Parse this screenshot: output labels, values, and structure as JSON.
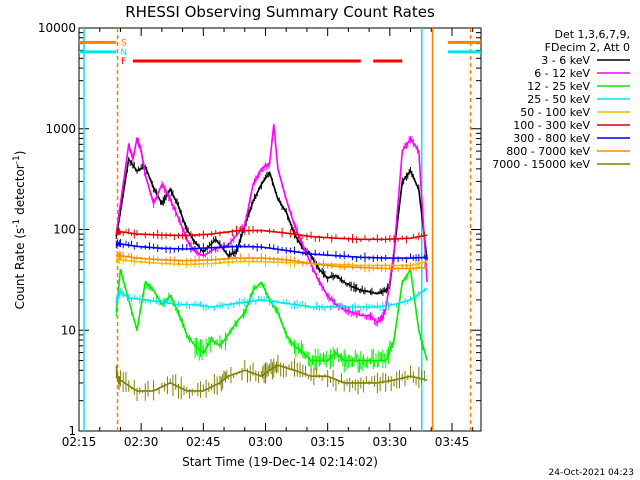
{
  "chart_data": {
    "type": "line",
    "title": "RHESSI Observing Summary Count Rates",
    "xlabel": "Start Time (19-Dec-14 02:14:02)",
    "ylabel": "Count Rate (s⁻¹ detector⁻¹)",
    "y_scale": "log",
    "ylim": [
      1,
      10000
    ],
    "y_ticks": [
      1,
      10,
      100,
      1000,
      10000
    ],
    "y_tick_labels": [
      "1",
      "10",
      "100",
      "1000",
      "10000"
    ],
    "xlim_minutes": [
      0,
      97
    ],
    "x_ticks_minutes": [
      0,
      15,
      30,
      45,
      60,
      75,
      90
    ],
    "x_tick_labels": [
      "02:15",
      "02:30",
      "02:45",
      "03:00",
      "03:15",
      "03:30",
      "03:45"
    ],
    "legend": {
      "placement": "right, outside plot",
      "header": [
        "Det 1,3,6,7,9,",
        "FDecim 2, Att 0"
      ],
      "entries": [
        {
          "label": "3 - 6 keV",
          "color": "#000000"
        },
        {
          "label": "6 - 12 keV",
          "color": "#ff00ff"
        },
        {
          "label": "12 - 25 keV",
          "color": "#00ee00"
        },
        {
          "label": "25 - 50 keV",
          "color": "#00e5ee"
        },
        {
          "label": "50 - 100 keV",
          "color": "#e6c200"
        },
        {
          "label": "100 - 300 keV",
          "color": "#e00000"
        },
        {
          "label": "300 - 800 keV",
          "color": "#0000ee"
        },
        {
          "label": "800 - 7000 keV",
          "color": "#ff8c00"
        },
        {
          "label": "7000 - 15000 keV",
          "color": "#808000"
        }
      ]
    },
    "flags": [
      {
        "label": "S",
        "color": "#ff8000",
        "segments": [
          [
            -2,
            9
          ],
          [
            89,
            97
          ]
        ]
      },
      {
        "label": "N",
        "color": "#00e5ee",
        "segments": [
          [
            -2,
            9
          ],
          [
            89,
            97
          ]
        ]
      },
      {
        "label": "F",
        "color": "#ff0000",
        "segments": [
          [
            13,
            68
          ],
          [
            71,
            78
          ]
        ]
      }
    ],
    "vertical_markers": [
      {
        "x": 1.2,
        "color": "#00e5ee",
        "style": "solid"
      },
      {
        "x": 9.3,
        "color": "#ff8000",
        "style": "dashed"
      },
      {
        "x": 82.7,
        "color": "#00e5ee",
        "style": "solid"
      },
      {
        "x": 85.3,
        "color": "#ff8000",
        "style": "solid"
      },
      {
        "x": 94.5,
        "color": "#ff8000",
        "style": "dashed"
      }
    ],
    "series": [
      {
        "label": "3 - 6 keV",
        "color": "#000000",
        "x": [
          9,
          10,
          12,
          14,
          16,
          18,
          20,
          22,
          24,
          26,
          28,
          30,
          33,
          36,
          38,
          40,
          42,
          44,
          46,
          48,
          50,
          52,
          54,
          56,
          58,
          60,
          62,
          64,
          66,
          68,
          70,
          72,
          74,
          75,
          76,
          78,
          80,
          82,
          84
        ],
        "y": [
          85,
          150,
          500,
          380,
          420,
          260,
          180,
          250,
          170,
          100,
          75,
          60,
          80,
          55,
          60,
          110,
          190,
          280,
          370,
          200,
          150,
          90,
          65,
          55,
          40,
          33,
          35,
          30,
          27,
          25,
          24,
          23,
          25,
          28,
          60,
          300,
          380,
          250,
          50
        ]
      },
      {
        "label": "6 - 12 keV",
        "color": "#ff00ff",
        "x": [
          9,
          10,
          12,
          13,
          14,
          15,
          16,
          17,
          18,
          20,
          22,
          24,
          26,
          28,
          30,
          33,
          36,
          40,
          42,
          44,
          46,
          47,
          48,
          50,
          52,
          54,
          56,
          58,
          60,
          62,
          64,
          66,
          68,
          70,
          72,
          73,
          74,
          76,
          78,
          80,
          82,
          84
        ],
        "y": [
          90,
          180,
          700,
          500,
          800,
          600,
          350,
          250,
          180,
          280,
          200,
          130,
          80,
          60,
          55,
          65,
          70,
          110,
          280,
          400,
          450,
          1100,
          400,
          200,
          110,
          70,
          45,
          30,
          22,
          18,
          16,
          15,
          14,
          14,
          12,
          13,
          16,
          60,
          600,
          800,
          600,
          30
        ]
      },
      {
        "label": "12 - 25 keV",
        "color": "#00ee00",
        "x": [
          9,
          10,
          12,
          14,
          16,
          18,
          20,
          22,
          24,
          26,
          28,
          30,
          32,
          34,
          36,
          38,
          40,
          42,
          44,
          46,
          48,
          50,
          52,
          54,
          56,
          58,
          60,
          62,
          64,
          66,
          68,
          70,
          72,
          74,
          76,
          78,
          80,
          82,
          84
        ],
        "y": [
          15,
          40,
          20,
          10,
          30,
          25,
          18,
          22,
          15,
          9,
          7,
          6,
          8,
          7,
          9,
          12,
          15,
          25,
          30,
          20,
          15,
          9,
          7,
          6,
          5,
          5,
          5,
          6,
          5,
          5,
          5,
          5,
          5,
          5,
          8,
          30,
          40,
          10,
          5
        ]
      },
      {
        "label": "25 - 50 keV",
        "color": "#00e5ee",
        "x": [
          9,
          10,
          12,
          16,
          20,
          24,
          28,
          32,
          36,
          40,
          44,
          48,
          52,
          56,
          60,
          64,
          68,
          72,
          76,
          80,
          84
        ],
        "y": [
          20,
          24,
          21,
          20,
          19,
          18,
          18,
          17,
          18,
          19,
          20,
          19,
          18,
          17,
          17,
          17,
          17,
          17,
          18,
          20,
          26
        ]
      },
      {
        "label": "50 - 100 keV",
        "color": "#e6c200",
        "x": [
          9,
          10,
          14,
          20,
          26,
          32,
          38,
          44,
          50,
          56,
          62,
          68,
          74,
          80,
          84
        ],
        "y": [
          50,
          50,
          48,
          46,
          45,
          46,
          48,
          48,
          47,
          46,
          45,
          44,
          44,
          44,
          48
        ]
      },
      {
        "label": "100 - 300 keV",
        "color": "#e00000",
        "x": [
          9,
          10,
          14,
          20,
          26,
          32,
          38,
          44,
          50,
          56,
          62,
          68,
          74,
          80,
          84
        ],
        "y": [
          95,
          95,
          90,
          88,
          87,
          90,
          97,
          98,
          92,
          85,
          82,
          80,
          80,
          82,
          88
        ]
      },
      {
        "label": "300 - 800 keV",
        "color": "#0000ee",
        "x": [
          9,
          10,
          14,
          20,
          26,
          32,
          38,
          44,
          50,
          56,
          62,
          68,
          74,
          80,
          84
        ],
        "y": [
          70,
          72,
          68,
          65,
          64,
          66,
          68,
          67,
          62,
          57,
          55,
          53,
          52,
          52,
          53
        ]
      },
      {
        "label": "800 - 7000 keV",
        "color": "#ff8c00",
        "x": [
          9,
          10,
          14,
          20,
          26,
          32,
          38,
          44,
          50,
          56,
          62,
          68,
          74,
          80,
          84
        ],
        "y": [
          55,
          55,
          52,
          50,
          49,
          50,
          52,
          52,
          50,
          46,
          43,
          42,
          41,
          41,
          42
        ]
      },
      {
        "label": "7000 - 15000 keV",
        "color": "#808000",
        "x": [
          9,
          10,
          14,
          18,
          22,
          26,
          30,
          34,
          36,
          40,
          44,
          46,
          48,
          52,
          56,
          60,
          64,
          68,
          72,
          76,
          80,
          84
        ],
        "y": [
          3.5,
          3.2,
          2.5,
          2.5,
          3,
          2.5,
          2.5,
          3,
          3.5,
          4,
          3.5,
          4,
          4.5,
          4,
          3.5,
          3.5,
          3,
          3,
          3,
          3.2,
          3.5,
          3.2
        ]
      }
    ]
  },
  "timestamp": "24-Oct-2021 04:23"
}
